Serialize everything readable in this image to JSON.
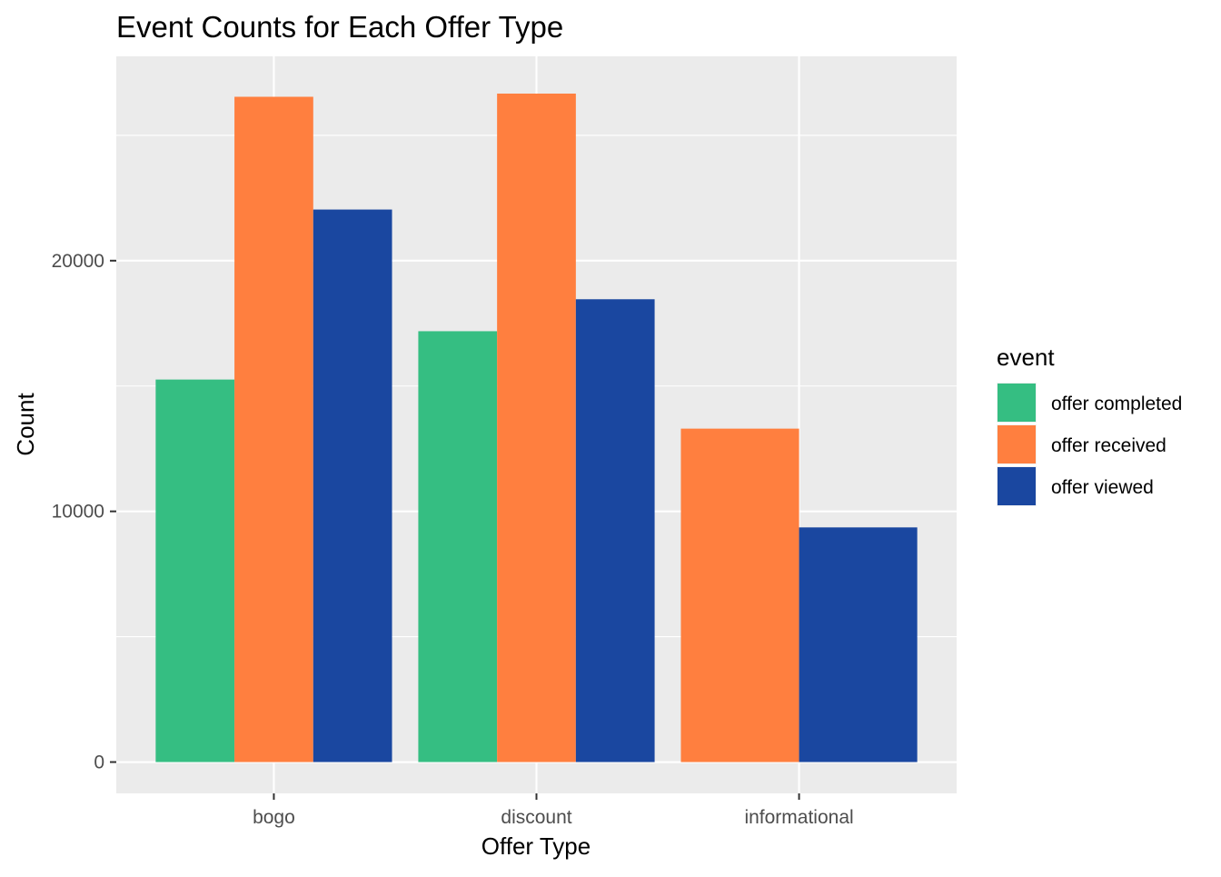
{
  "chart_data": {
    "type": "bar",
    "title": "Event Counts for Each Offer Type",
    "xlabel": "Offer Type",
    "ylabel": "Count",
    "categories": [
      "bogo",
      "discount",
      "informational"
    ],
    "series": [
      {
        "name": "offer completed",
        "color": "#35BE82",
        "values": [
          15258,
          17186,
          null
        ]
      },
      {
        "name": "offer received",
        "color": "#FF7F3F",
        "values": [
          26537,
          26664,
          13300
        ]
      },
      {
        "name": "offer viewed",
        "color": "#1A47A0",
        "values": [
          22039,
          18461,
          9360
        ]
      }
    ],
    "ylim": [
      -1250,
      28150
    ],
    "yticks": [
      0,
      10000,
      20000
    ],
    "ytick_labels": [
      "0",
      "10000",
      "20000"
    ],
    "grid": true,
    "panel_background": "#EBEBEB",
    "grid_color": "#FFFFFF",
    "legend": {
      "title": "event",
      "position": "right"
    }
  }
}
